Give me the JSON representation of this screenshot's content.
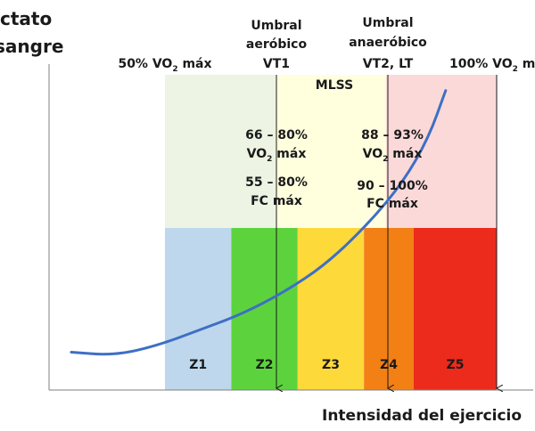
{
  "chart_data": {
    "type": "area",
    "title": "",
    "ylabel_lines": [
      "ctato",
      "sangre"
    ],
    "xlabel": "Intensidad del ejercicio",
    "xlim": [
      0,
      100
    ],
    "ylim": [
      0,
      100
    ],
    "top_markers": [
      {
        "label_main": "50% VO",
        "label_sub": "2",
        "label_tail": " máx"
      },
      {
        "label_main": "100% VO",
        "label_sub": "2",
        "label_tail": " m"
      }
    ],
    "thresholds": [
      {
        "lines": [
          "Umbral",
          "aeróbico",
          "VT1"
        ]
      },
      {
        "lines": [
          "Umbral",
          "anaeróbico",
          "VT2, LT"
        ]
      }
    ],
    "regions": [
      {
        "name": "",
        "x0": 0,
        "x1": 25,
        "color": "#eef4e3"
      },
      {
        "name": "MLSS",
        "x0": 25,
        "x1": 50,
        "color": "#ffffde"
      },
      {
        "name": "",
        "x0": 50,
        "x1": 75,
        "color": "#fbd9d8"
      }
    ],
    "region_notes": [
      {
        "vo2_range": "66 – 80%",
        "vo2_main": "VO",
        "vo2_sub": "2",
        "vo2_tail": " máx",
        "fc_range": "55 – 80%",
        "fc_label": "FC máx"
      },
      {
        "vo2_range": "88 – 93%",
        "vo2_main": "VO",
        "vo2_sub": "2",
        "vo2_tail": " máx",
        "fc_range": "90 – 100%",
        "fc_label": "FC máx"
      }
    ],
    "zones": [
      {
        "name": "Z1",
        "x0": 0,
        "x1": 20,
        "color": "#bed7ec"
      },
      {
        "name": "Z2",
        "x0": 20,
        "x1": 40,
        "color": "#5cd33c"
      },
      {
        "name": "Z3",
        "x0": 40,
        "x1": 60,
        "color": "#fdd93a"
      },
      {
        "name": "Z4",
        "x0": 60,
        "x1": 75,
        "color": "#f28015"
      },
      {
        "name": "Z5",
        "x0": 75,
        "x1": 100,
        "color": "#ec2b1d"
      }
    ],
    "curve_color": "#3e6fc4",
    "curve": [
      [
        0,
        12
      ],
      [
        10,
        11
      ],
      [
        20,
        14
      ],
      [
        30,
        19
      ],
      [
        40,
        24
      ],
      [
        50,
        31
      ],
      [
        60,
        40
      ],
      [
        70,
        53
      ],
      [
        78,
        66
      ],
      [
        84,
        80
      ],
      [
        88,
        95
      ]
    ]
  }
}
